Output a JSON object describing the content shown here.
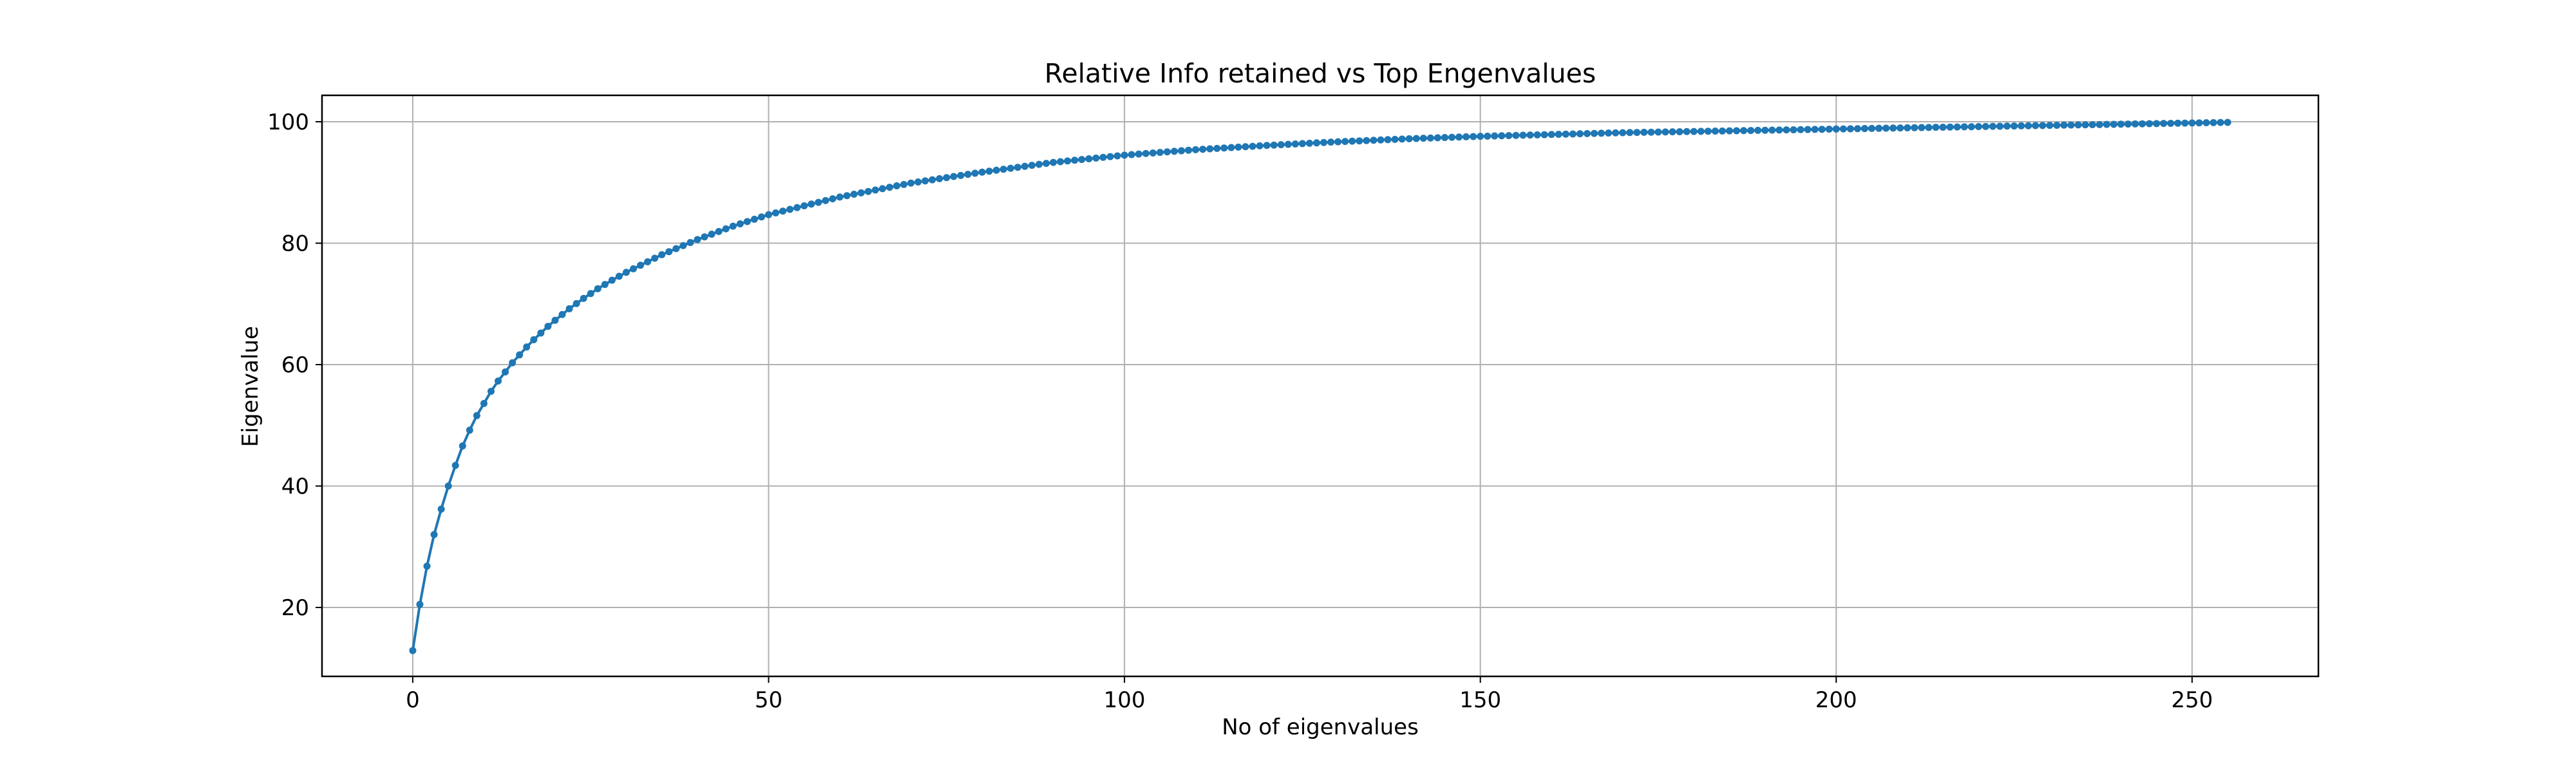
{
  "chart_data": {
    "type": "line",
    "title": "Relative Info retained vs Top Engenvalues",
    "xlabel": "No of eigenvalues",
    "ylabel": "Eigenvalue",
    "xlim": [
      -12.75,
      267.75
    ],
    "ylim": [
      8.65,
      104.35
    ],
    "x_ticks": [
      0,
      50,
      100,
      150,
      200,
      250
    ],
    "y_ticks": [
      20,
      40,
      60,
      80,
      100
    ],
    "grid": true,
    "legend": "none",
    "series": [
      {
        "marker": "circle",
        "color": "#1f77b4",
        "x": [
          0,
          1,
          2,
          3,
          4,
          5,
          6,
          7,
          8,
          9,
          10,
          11,
          12,
          13,
          14,
          15,
          16,
          17,
          18,
          19,
          20,
          22,
          24,
          26,
          28,
          30,
          35,
          40,
          45,
          50,
          60,
          70,
          80,
          90,
          100,
          110,
          120,
          130,
          140,
          150,
          160,
          170,
          180,
          190,
          200,
          210,
          220,
          230,
          240,
          250,
          255
        ],
        "y": [
          12.9,
          20.5,
          26.8,
          32.0,
          36.2,
          40.0,
          43.4,
          46.6,
          49.2,
          51.6,
          53.6,
          55.6,
          57.3,
          58.8,
          60.3,
          61.6,
          62.9,
          64.1,
          65.2,
          66.3,
          67.3,
          69.2,
          70.9,
          72.5,
          73.9,
          75.2,
          78.1,
          80.6,
          82.8,
          84.7,
          87.6,
          89.9,
          91.7,
          93.3,
          94.5,
          95.4,
          96.1,
          96.7,
          97.2,
          97.6,
          97.9,
          98.2,
          98.4,
          98.6,
          98.8,
          99.0,
          99.2,
          99.4,
          99.6,
          99.8,
          99.9
        ]
      }
    ]
  }
}
